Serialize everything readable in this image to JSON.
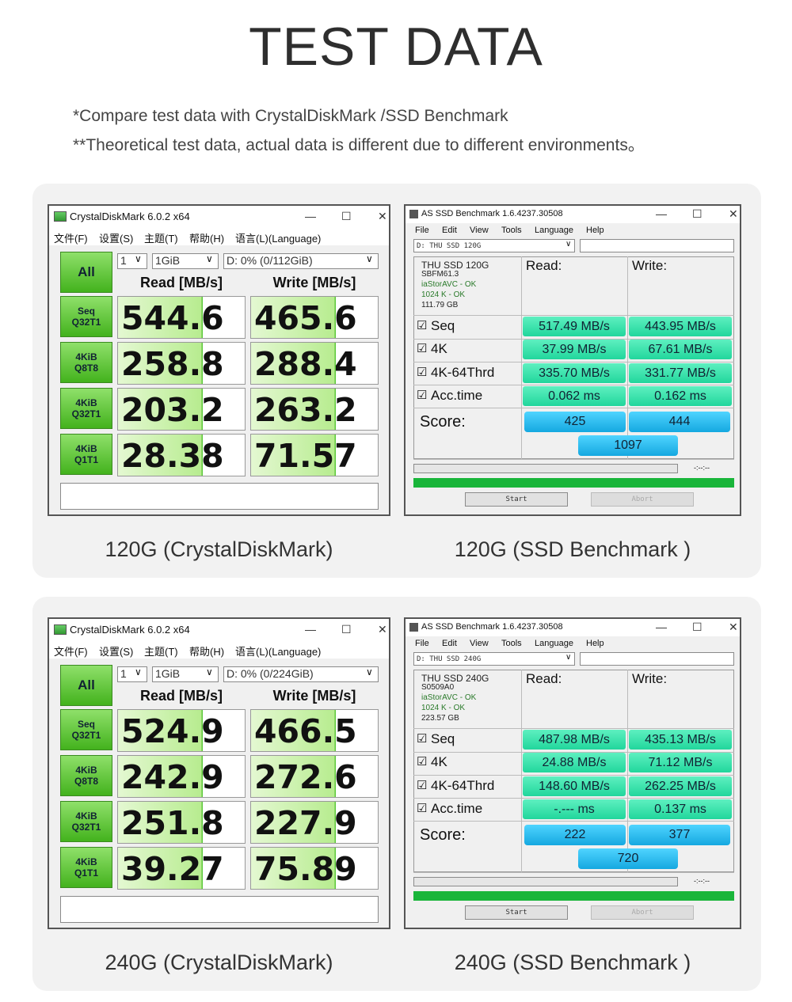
{
  "header": {
    "title": "TEST DATA",
    "notes": [
      "*Compare test data with CrystalDiskMark /SSD Benchmark",
      "**Theoretical test data, actual data is different due to different environments。"
    ]
  },
  "panels": [
    {
      "cdm": {
        "title": "CrystalDiskMark 6.0.2 x64",
        "menu": [
          "文件(F)",
          "设置(S)",
          "主题(T)",
          "帮助(H)",
          "语言(L)(Language)"
        ],
        "all": "All",
        "count": "1",
        "size": "1GiB",
        "drive": "D: 0% (0/112GiB)",
        "read_header": "Read [MB/s]",
        "write_header": "Write [MB/s]",
        "rows": [
          {
            "label": [
              "Seq",
              "Q32T1"
            ],
            "read": "544.6",
            "write": "465.6"
          },
          {
            "label": [
              "4KiB",
              "Q8T8"
            ],
            "read": "258.8",
            "write": "288.4"
          },
          {
            "label": [
              "4KiB",
              "Q32T1"
            ],
            "read": "203.2",
            "write": "263.2"
          },
          {
            "label": [
              "4KiB",
              "Q1T1"
            ],
            "read": "28.38",
            "write": "71.57"
          }
        ]
      },
      "asssd": {
        "title": "AS SSD Benchmark 1.6.4237.30508",
        "menu": [
          "File",
          "Edit",
          "View",
          "Tools",
          "Language",
          "Help"
        ],
        "drive": "D: THU SSD 120G",
        "info": [
          "THU SSD 120G",
          "SBFM61.3",
          "iaStorAVC - OK",
          "1024 K - OK",
          "111.79 GB"
        ],
        "read_header": "Read:",
        "write_header": "Write:",
        "rows": [
          {
            "label": "Seq",
            "read": "517.49 MB/s",
            "write": "443.95 MB/s"
          },
          {
            "label": "4K",
            "read": "37.99 MB/s",
            "write": "67.61 MB/s"
          },
          {
            "label": "4K-64Thrd",
            "read": "335.70 MB/s",
            "write": "331.77 MB/s"
          },
          {
            "label": "Acc.time",
            "read": "0.062 ms",
            "write": "0.162 ms"
          }
        ],
        "score_label": "Score:",
        "score_read": "425",
        "score_write": "444",
        "score_total": "1097",
        "time": "-:--:--",
        "start": "Start",
        "abort": "Abort"
      },
      "captions": [
        "120G (CrystalDiskMark)",
        "120G (SSD Benchmark )"
      ]
    },
    {
      "cdm": {
        "title": "CrystalDiskMark 6.0.2 x64",
        "menu": [
          "文件(F)",
          "设置(S)",
          "主题(T)",
          "帮助(H)",
          "语言(L)(Language)"
        ],
        "all": "All",
        "count": "1",
        "size": "1GiB",
        "drive": "D: 0% (0/224GiB)",
        "read_header": "Read [MB/s]",
        "write_header": "Write [MB/s]",
        "rows": [
          {
            "label": [
              "Seq",
              "Q32T1"
            ],
            "read": "524.9",
            "write": "466.5"
          },
          {
            "label": [
              "4KiB",
              "Q8T8"
            ],
            "read": "242.9",
            "write": "272.6"
          },
          {
            "label": [
              "4KiB",
              "Q32T1"
            ],
            "read": "251.8",
            "write": "227.9"
          },
          {
            "label": [
              "4KiB",
              "Q1T1"
            ],
            "read": "39.27",
            "write": "75.89"
          }
        ]
      },
      "asssd": {
        "title": "AS SSD Benchmark 1.6.4237.30508",
        "menu": [
          "File",
          "Edit",
          "View",
          "Tools",
          "Language",
          "Help"
        ],
        "drive": "D: THU SSD 240G",
        "info": [
          "THU SSD 240G",
          "S0509A0",
          "iaStorAVC - OK",
          "1024 K - OK",
          "223.57 GB"
        ],
        "read_header": "Read:",
        "write_header": "Write:",
        "rows": [
          {
            "label": "Seq",
            "read": "487.98 MB/s",
            "write": "435.13 MB/s"
          },
          {
            "label": "4K",
            "read": "24.88 MB/s",
            "write": "71.12 MB/s"
          },
          {
            "label": "4K-64Thrd",
            "read": "148.60 MB/s",
            "write": "262.25 MB/s"
          },
          {
            "label": "Acc.time",
            "read": "-.--- ms",
            "write": "0.137 ms"
          }
        ],
        "score_label": "Score:",
        "score_read": "222",
        "score_write": "377",
        "score_total": "720",
        "time": "-:--:--",
        "start": "Start",
        "abort": "Abort"
      },
      "captions": [
        "240G (CrystalDiskMark)",
        "240G (SSD Benchmark )"
      ]
    }
  ]
}
